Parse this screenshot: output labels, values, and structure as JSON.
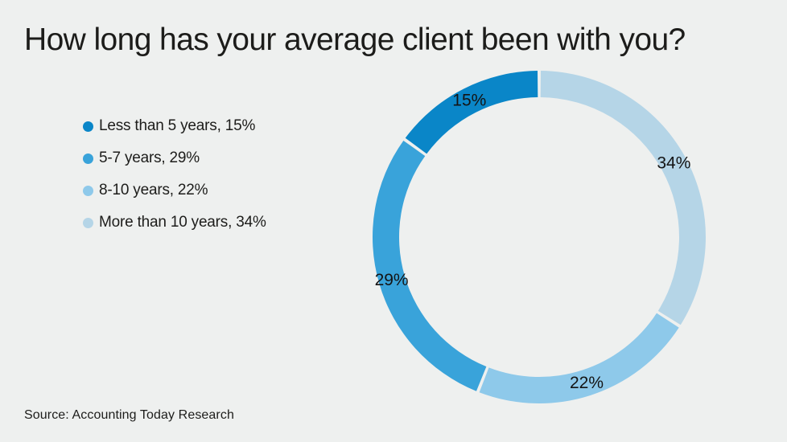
{
  "title": "How long has your average client been with you?",
  "source": "Source: Accounting Today Research",
  "colors": {
    "background": "#eef0ef",
    "text": "#1d1d1b",
    "label_text": "#141414"
  },
  "legend": {
    "items": [
      {
        "label": "Less than 5 years, 15%",
        "color": "#0a86c8"
      },
      {
        "label": "5-7 years, 29%",
        "color": "#39a3da"
      },
      {
        "label": "8-10 years, 22%",
        "color": "#8ec9ea"
      },
      {
        "label": "More than 10 years, 34%",
        "color": "#b5d5e7"
      }
    ]
  },
  "chart_data": {
    "type": "pie",
    "subtype": "donut",
    "title": "How long has your average client been with you?",
    "categories": [
      "Less than 5 years",
      "5-7 years",
      "8-10 years",
      "More than 10 years"
    ],
    "values": [
      15,
      29,
      22,
      34
    ],
    "data_labels": [
      "15%",
      "29%",
      "22%",
      "34%"
    ],
    "colors": [
      "#0a86c8",
      "#39a3da",
      "#8ec9ea",
      "#b5d5e7"
    ],
    "legend_position": "left",
    "start_angle_deg": 0,
    "winding": "last-category-clockwise-from-top",
    "outer_radius_px": 207,
    "ring_thickness_px": 33,
    "segment_gap_deg": 1.1,
    "label_radius_px": 191,
    "label_font_px": 21
  }
}
